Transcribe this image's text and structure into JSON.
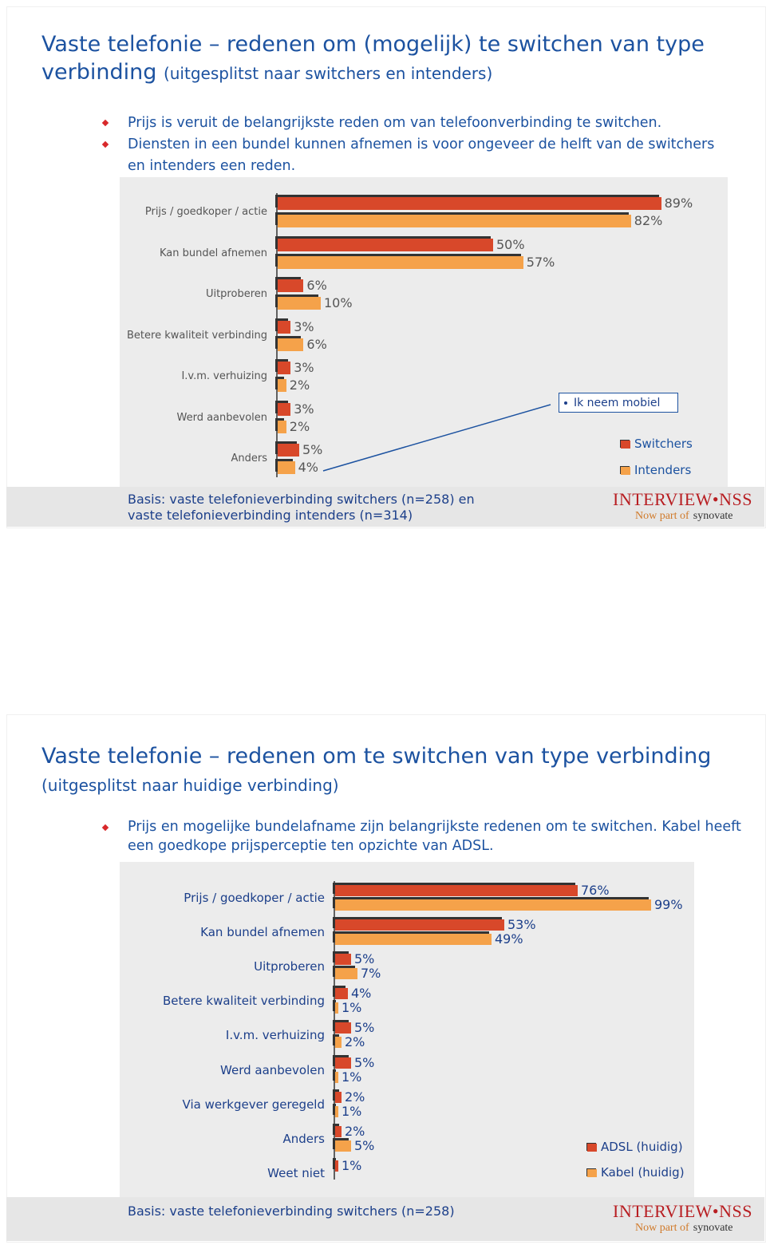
{
  "slides": [
    {
      "title": "Vaste telefonie – redenen om (mogelijk) te switchen van type verbinding",
      "subtitle": "(uitgesplitst naar switchers en intenders)",
      "bullets": [
        "Prijs is veruit de belangrijkste reden om van telefoonverbinding te switchen.",
        "Diensten in een bundel kunnen afnemen is voor ongeveer de helft van de switchers en intenders een reden."
      ],
      "footnote": "Basis: vaste telefonieverbinding switchers (n=258) en vaste telefonieverbinding intenders (n=314)",
      "logo": {
        "brand": "INTERVIEW•NSS",
        "tagline": "Now part of",
        "partner": "synovate"
      }
    },
    {
      "title": "Vaste telefonie – redenen om te switchen van type verbinding",
      "subtitle": "(uitgesplitst naar huidige verbinding)",
      "bullets": [
        "Prijs en mogelijke bundelafname zijn belangrijkste redenen om te switchen. Kabel heeft een goedkope prijsperceptie ten opzichte van ADSL."
      ],
      "footnote": "Basis: vaste telefonieverbinding switchers (n=258)",
      "logo": {
        "brand": "INTERVIEW•NSS",
        "tagline": "Now part of",
        "partner": "synovate"
      }
    }
  ],
  "chart_data": [
    {
      "type": "bar",
      "orientation": "horizontal",
      "categories": [
        "Prijs / goedkoper / actie",
        "Kan bundel afnemen",
        "Uitproberen",
        "Betere kwaliteit verbinding",
        "I.v.m. verhuizing",
        "Werd aanbevolen",
        "Anders"
      ],
      "series": [
        {
          "name": "Switchers",
          "color": "#d8482a",
          "values": [
            89,
            50,
            6,
            3,
            3,
            3,
            5
          ],
          "value_labels": [
            "89%",
            "50%",
            "6%",
            "3%",
            "3%",
            "3%",
            "5%"
          ]
        },
        {
          "name": "Intenders",
          "color": "#f5a24a",
          "values": [
            82,
            57,
            10,
            6,
            2,
            2,
            4
          ],
          "value_labels": [
            "82%",
            "57%",
            "10%",
            "6%",
            "2%",
            "2%",
            "4%"
          ]
        }
      ],
      "annotation": "Ik neem mobiel"
    },
    {
      "type": "bar",
      "orientation": "horizontal",
      "categories": [
        "Prijs / goedkoper / actie",
        "Kan bundel afnemen",
        "Uitproberen",
        "Betere kwaliteit verbinding",
        "I.v.m. verhuizing",
        "Werd aanbevolen",
        "Via werkgever geregeld",
        "Anders",
        "Weet niet"
      ],
      "series": [
        {
          "name": "ADSL (huidig)",
          "color": "#d8482a",
          "values": [
            76,
            53,
            5,
            4,
            5,
            5,
            2,
            2,
            1
          ],
          "value_labels": [
            "76%",
            "53%",
            "5%",
            "4%",
            "5%",
            "5%",
            "2%",
            "2%",
            "1%"
          ]
        },
        {
          "name": "Kabel (huidig)",
          "color": "#f5a24a",
          "values": [
            99,
            49,
            7,
            1,
            2,
            1,
            1,
            5,
            null
          ],
          "value_labels": [
            "99%",
            "49%",
            "7%",
            "1%",
            "2%",
            "1%",
            "1%",
            "5%",
            null
          ]
        }
      ]
    }
  ]
}
